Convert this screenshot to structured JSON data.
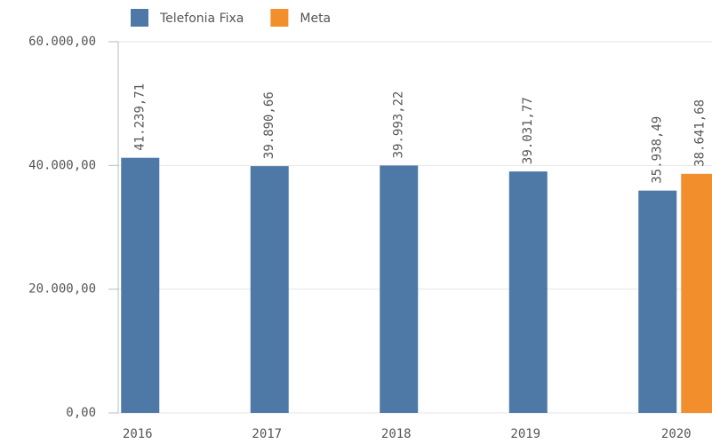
{
  "chart_data": {
    "type": "bar",
    "categories": [
      "2016",
      "2017",
      "2018",
      "2019",
      "2020"
    ],
    "series": [
      {
        "name": "Telefonia Fixa",
        "color": "#4e79a7",
        "values": [
          41239.71,
          39890.66,
          39993.22,
          39031.77,
          35938.49
        ],
        "value_labels": [
          "41.239,71",
          "39.890,66",
          "39.993,22",
          "39.031,77",
          "35.938,49"
        ]
      },
      {
        "name": "Meta",
        "color": "#f28e2b",
        "values": [
          null,
          null,
          null,
          null,
          38641.68
        ],
        "value_labels": [
          null,
          null,
          null,
          null,
          "38.641,68"
        ]
      }
    ],
    "ylim": [
      0,
      60000
    ],
    "yticks": [
      {
        "value": 0,
        "label": "0,00"
      },
      {
        "value": 20000,
        "label": "20.000,00"
      },
      {
        "value": 40000,
        "label": "40.000,00"
      },
      {
        "value": 60000,
        "label": "60.000,00"
      }
    ],
    "grid": true,
    "legend": "top"
  }
}
